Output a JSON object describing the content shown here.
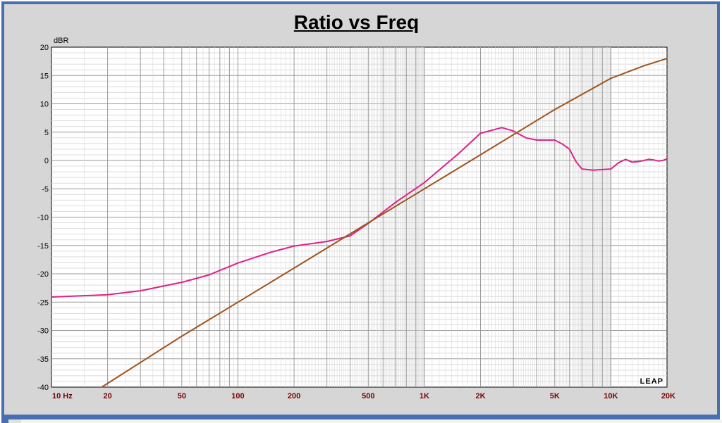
{
  "chart_data": {
    "type": "line",
    "title": "Ratio vs Freq",
    "ylabel": "dBR",
    "xscale": "log",
    "xlim": [
      10,
      20000
    ],
    "ylim": [
      -40,
      20
    ],
    "grid": true,
    "logo": "LEAP",
    "y_ticks": [
      "20",
      "15",
      "10",
      "5",
      "0",
      "-5",
      "-10",
      "-15",
      "-20",
      "-25",
      "-30",
      "-35",
      "-40"
    ],
    "x_tick_labels": [
      {
        "f": 10,
        "label": "10  Hz"
      },
      {
        "f": 20,
        "label": "20"
      },
      {
        "f": 50,
        "label": "50"
      },
      {
        "f": 100,
        "label": "100"
      },
      {
        "f": 200,
        "label": "200"
      },
      {
        "f": 500,
        "label": "500"
      },
      {
        "f": 1000,
        "label": "1K"
      },
      {
        "f": 2000,
        "label": "2K"
      },
      {
        "f": 5000,
        "label": "5K"
      },
      {
        "f": 10000,
        "label": "10K"
      },
      {
        "f": 20000,
        "label": "20K"
      }
    ],
    "series": [
      {
        "color": "#e0208a",
        "x": [
          10,
          20,
          30,
          50,
          70,
          100,
          150,
          200,
          300,
          400,
          500,
          700,
          1000,
          1500,
          2000,
          2600,
          3000,
          3500,
          4000,
          5000,
          5500,
          6000,
          6500,
          7000,
          8000,
          9000,
          10000,
          11000,
          12000,
          13000,
          14000,
          15000,
          16000,
          17000,
          18000,
          19000,
          20000
        ],
        "y": [
          -24.1,
          -23.7,
          -23.0,
          -21.5,
          -20.2,
          -18.1,
          -16.2,
          -15.1,
          -14.3,
          -13.3,
          -11.1,
          -7.4,
          -3.9,
          1.0,
          4.8,
          5.8,
          5.2,
          4.0,
          3.6,
          3.6,
          2.9,
          2.0,
          -0.2,
          -1.5,
          -1.7,
          -1.6,
          -1.5,
          -0.4,
          0.2,
          -0.3,
          -0.2,
          0.0,
          0.2,
          0.1,
          -0.1,
          0.0,
          0.3
        ]
      },
      {
        "color": "#a0531a",
        "x": [
          18.6,
          50,
          100,
          200,
          500,
          1000,
          2000,
          5000,
          10000,
          15000,
          20000
        ],
        "y": [
          -40.0,
          -31.0,
          -25.0,
          -19.0,
          -11.0,
          -5.0,
          1.0,
          9.0,
          14.5,
          16.7,
          18.0
        ]
      }
    ]
  }
}
